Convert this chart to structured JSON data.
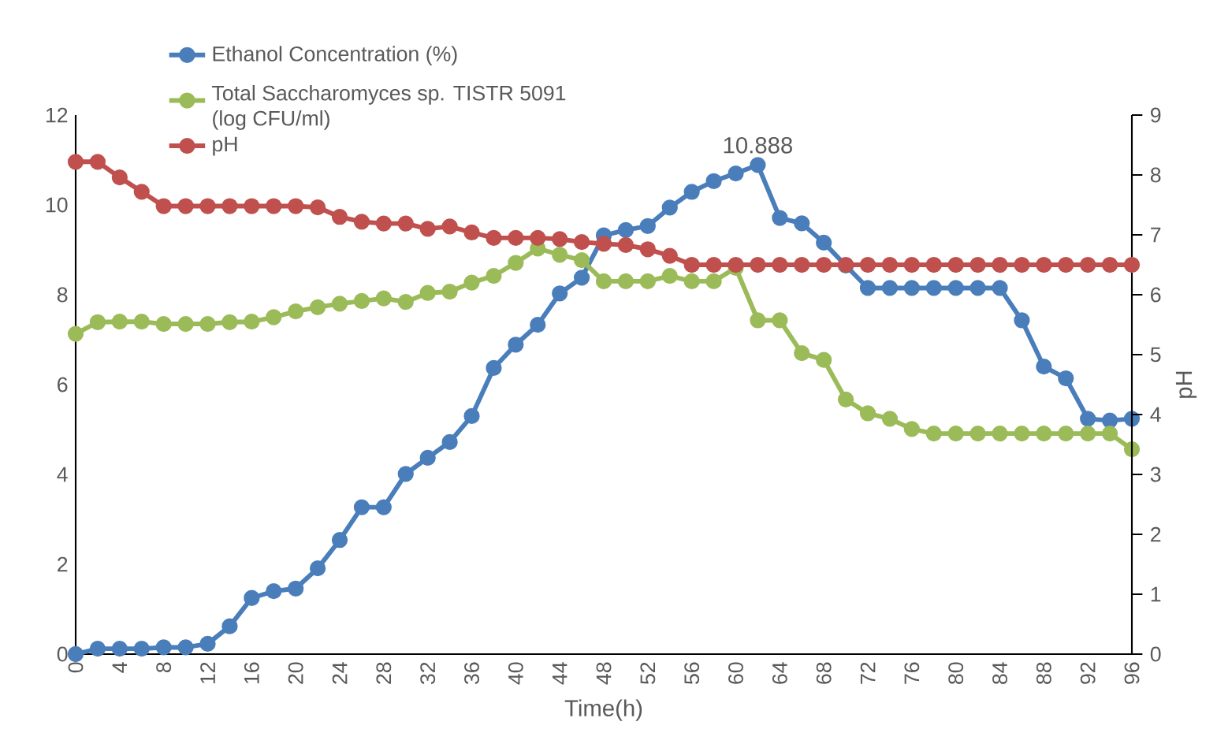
{
  "chart_data": {
    "type": "line",
    "xlabel": "Time(h)",
    "y2label": "pH",
    "legend": "top left",
    "marker": "circle",
    "x": [
      0,
      2,
      4,
      6,
      8,
      10,
      12,
      14,
      16,
      18,
      20,
      22,
      24,
      26,
      28,
      30,
      32,
      34,
      36,
      38,
      40,
      42,
      44,
      46,
      48,
      50,
      52,
      54,
      56,
      58,
      60,
      62,
      64,
      66,
      68,
      70,
      72,
      74,
      76,
      78,
      80,
      82,
      84,
      86,
      88,
      90,
      92,
      94,
      96
    ],
    "xlim": [
      0,
      96
    ],
    "xticks": [
      0,
      4,
      8,
      12,
      16,
      20,
      24,
      28,
      32,
      36,
      40,
      44,
      48,
      52,
      56,
      60,
      64,
      68,
      72,
      76,
      80,
      84,
      88,
      92,
      96
    ],
    "ylim": [
      0,
      12
    ],
    "yticks": [
      0,
      2,
      4,
      6,
      8,
      10,
      12
    ],
    "y2lim": [
      0,
      9
    ],
    "y2ticks": [
      0,
      1,
      2,
      3,
      4,
      5,
      6,
      7,
      8,
      9
    ],
    "series": [
      {
        "name": "Ethanol Concentration (%)",
        "color": "#4a7ebb",
        "values": [
          0,
          0.12,
          0.12,
          0.12,
          0.15,
          0.15,
          0.23,
          0.62,
          1.25,
          1.4,
          1.46,
          1.91,
          2.54,
          3.27,
          3.27,
          4.01,
          4.37,
          4.72,
          5.3,
          6.37,
          6.89,
          7.33,
          8.03,
          8.38,
          9.32,
          9.44,
          9.53,
          9.94,
          10.29,
          10.53,
          10.7,
          10.888,
          9.71,
          9.59,
          9.16,
          8.65,
          8.15,
          8.15,
          8.15,
          8.15,
          8.15,
          8.15,
          8.15,
          7.43,
          6.4,
          6.14,
          5.24,
          5.2,
          5.24
        ],
        "value_labels": [
          null,
          null,
          null,
          null,
          null,
          null,
          null,
          null,
          null,
          null,
          null,
          null,
          null,
          null,
          null,
          null,
          null,
          null,
          null,
          null,
          null,
          null,
          null,
          null,
          null,
          null,
          null,
          null,
          null,
          null,
          null,
          "10.888",
          null,
          null,
          null,
          null,
          null,
          null,
          null,
          null,
          null,
          null,
          null,
          null,
          null,
          null,
          null,
          null,
          null
        ]
      },
      {
        "name": "Total Saccharomyces sp. TISTR 5091 (log CFU/ml)",
        "color": "#9bbb59",
        "values": [
          7.13,
          7.39,
          7.4,
          7.4,
          7.35,
          7.35,
          7.35,
          7.39,
          7.4,
          7.5,
          7.63,
          7.72,
          7.8,
          7.86,
          7.92,
          7.84,
          8.04,
          8.07,
          8.27,
          8.42,
          8.71,
          9.03,
          8.89,
          8.77,
          8.3,
          8.3,
          8.3,
          8.42,
          8.3,
          8.3,
          8.6,
          7.43,
          7.43,
          6.7,
          6.55,
          5.67,
          5.36,
          5.24,
          5.01,
          4.91,
          4.91,
          4.91,
          4.91,
          4.91,
          4.91,
          4.91,
          4.91,
          4.91,
          4.56
        ]
      },
      {
        "name": "pH",
        "color": "#c0504d",
        "axis": "y2",
        "values": [
          8.22,
          8.22,
          7.96,
          7.72,
          7.48,
          7.48,
          7.48,
          7.48,
          7.48,
          7.48,
          7.48,
          7.46,
          7.3,
          7.22,
          7.19,
          7.19,
          7.1,
          7.14,
          7.04,
          6.95,
          6.95,
          6.95,
          6.93,
          6.88,
          6.85,
          6.83,
          6.76,
          6.65,
          6.5,
          6.5,
          6.5,
          6.5,
          6.5,
          6.5,
          6.5,
          6.5,
          6.5,
          6.5,
          6.5,
          6.5,
          6.5,
          6.5,
          6.5,
          6.5,
          6.5,
          6.5,
          6.5,
          6.5,
          6.5
        ]
      }
    ]
  }
}
